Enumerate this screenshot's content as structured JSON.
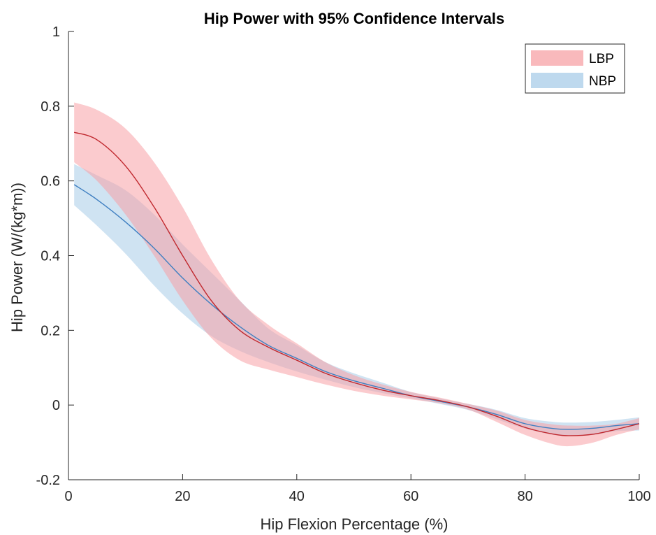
{
  "chart_data": {
    "type": "line",
    "title": "Hip Power with 95% Confidence Intervals",
    "xlabel": "Hip Flexion Percentage (%)",
    "ylabel": "Hip Power (W/(kg*m))",
    "xlim": [
      0,
      100
    ],
    "ylim": [
      -0.2,
      1
    ],
    "xticks": [
      0,
      20,
      40,
      60,
      80,
      100
    ],
    "xtick_labels": [
      "0",
      "20",
      "40",
      "60",
      "80",
      "100"
    ],
    "yticks": [
      -0.2,
      0,
      0.2,
      0.4,
      0.6,
      0.8,
      1
    ],
    "ytick_labels": [
      "-0.2",
      "0",
      "0.2",
      "0.4",
      "0.6",
      "0.8",
      "1"
    ],
    "grid": false,
    "legend_position": "top-right",
    "series": [
      {
        "name": "LBP",
        "line_color": "#c0282e",
        "band_color": "#f7a1a5",
        "x": [
          1,
          5,
          10,
          15,
          20,
          25,
          30,
          35,
          40,
          45,
          50,
          55,
          60,
          65,
          70,
          75,
          80,
          85,
          88,
          92,
          96,
          100
        ],
        "mean": [
          0.73,
          0.71,
          0.64,
          0.53,
          0.4,
          0.28,
          0.2,
          0.155,
          0.12,
          0.085,
          0.06,
          0.04,
          0.025,
          0.012,
          -0.005,
          -0.03,
          -0.06,
          -0.078,
          -0.082,
          -0.078,
          -0.065,
          -0.05
        ],
        "lower": [
          0.65,
          0.6,
          0.51,
          0.4,
          0.28,
          0.18,
          0.12,
          0.095,
          0.075,
          0.055,
          0.038,
          0.025,
          0.015,
          0.005,
          -0.012,
          -0.045,
          -0.08,
          -0.105,
          -0.11,
          -0.1,
          -0.08,
          -0.065
        ],
        "upper": [
          0.81,
          0.79,
          0.74,
          0.65,
          0.53,
          0.39,
          0.28,
          0.215,
          0.165,
          0.115,
          0.08,
          0.055,
          0.035,
          0.02,
          0.003,
          -0.015,
          -0.04,
          -0.052,
          -0.055,
          -0.055,
          -0.05,
          -0.035
        ]
      },
      {
        "name": "NBP",
        "line_color": "#3f7fc1",
        "band_color": "#a8cce8",
        "x": [
          1,
          5,
          10,
          15,
          20,
          25,
          30,
          35,
          40,
          45,
          50,
          55,
          60,
          65,
          70,
          75,
          80,
          85,
          88,
          92,
          96,
          100
        ],
        "mean": [
          0.59,
          0.55,
          0.49,
          0.42,
          0.34,
          0.27,
          0.21,
          0.16,
          0.125,
          0.09,
          0.065,
          0.045,
          0.025,
          0.01,
          -0.005,
          -0.025,
          -0.05,
          -0.063,
          -0.065,
          -0.062,
          -0.055,
          -0.05
        ],
        "lower": [
          0.535,
          0.48,
          0.405,
          0.32,
          0.245,
          0.185,
          0.145,
          0.115,
          0.09,
          0.068,
          0.048,
          0.032,
          0.018,
          0.003,
          -0.013,
          -0.038,
          -0.063,
          -0.08,
          -0.083,
          -0.08,
          -0.07,
          -0.068
        ],
        "upper": [
          0.645,
          0.615,
          0.575,
          0.51,
          0.43,
          0.355,
          0.28,
          0.205,
          0.16,
          0.115,
          0.085,
          0.06,
          0.035,
          0.018,
          0.003,
          -0.013,
          -0.035,
          -0.045,
          -0.047,
          -0.045,
          -0.04,
          -0.033
        ]
      }
    ]
  }
}
